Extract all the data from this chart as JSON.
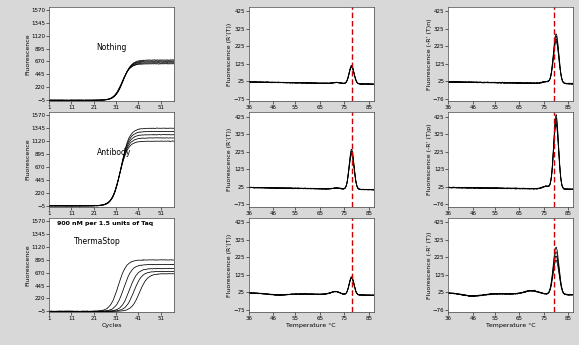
{
  "figure_bg": "#d8d8d8",
  "panel_bg": "#ffffff",
  "line_color": "#000000",
  "red_line_color": "#cc0000",
  "col1_ylabel": "Fluorescence",
  "col2_ylabel": "Fluorescence (R’(T))",
  "col3_ylabel_row0": "Fluorescence (-R’ (T)n)",
  "col3_ylabel_row1": "Fluorescence (-R’ (T)p)",
  "col3_ylabel_row2": "Fluorescence (-R’ (T))",
  "col1_xlabel": "Cycles",
  "col2_xlabel": "Temperature °C",
  "col3_xlabel": "Temperature °C",
  "col1_xticks": [
    1,
    11,
    21,
    31,
    41,
    51
  ],
  "col1_yticks": [
    -5,
    220,
    445,
    670,
    895,
    1120,
    1345,
    1570
  ],
  "col1_ylim": [
    -20,
    1620
  ],
  "col1_xlim": [
    1,
    57
  ],
  "col2_xticks": [
    36,
    46,
    55,
    65,
    75,
    85
  ],
  "col2_yticks": [
    -75,
    25,
    125,
    225,
    325,
    425
  ],
  "col2_ylim": [
    -90,
    450
  ],
  "col2_xlim": [
    36,
    87
  ],
  "col3_xticks": [
    36,
    46,
    55,
    65,
    75,
    85
  ],
  "col3_yticks": [
    -76,
    25,
    125,
    225,
    325,
    425
  ],
  "col3_ylim": [
    -90,
    450
  ],
  "col3_xlim": [
    36,
    87
  ],
  "red_line_col2": 78,
  "red_line_col3": 79,
  "font_size_label": 4.5,
  "font_size_tick": 4.0,
  "font_size_annot": 5.5,
  "font_size_bold_annot": 4.5
}
